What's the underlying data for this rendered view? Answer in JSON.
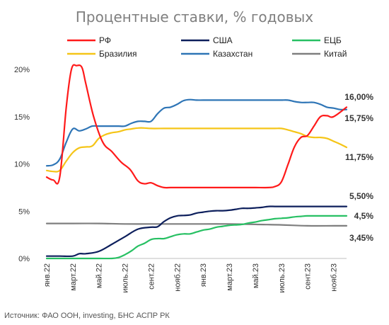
{
  "chart_data": {
    "type": "line",
    "title": "Процентные ставки, % годовых",
    "source": "Источник: ФАО ООН, investing, БНС АСПР РК",
    "ylim": [
      0,
      20
    ],
    "yticks": [
      "0%",
      "5%",
      "10%",
      "15%",
      "20%"
    ],
    "ytick_values": [
      0,
      5,
      10,
      15,
      20
    ],
    "xlim": [
      0,
      23
    ],
    "x_tick_labels": [
      "янв.22",
      "март.22",
      "май.22",
      "июль.22",
      "сент.22",
      "нояб.22",
      "янв.23",
      "март.23",
      "май.23",
      "июль.23",
      "сент.23",
      "нояб.23"
    ],
    "x_tick_positions": [
      0,
      2,
      4,
      6,
      8,
      10,
      12,
      14,
      16,
      18,
      20,
      22
    ],
    "grid": false,
    "legend_placement": "top",
    "series": [
      {
        "name": "РФ",
        "color": "#ff1a1a",
        "x": [
          0,
          0.5,
          1.0,
          1.5,
          1.9,
          2.3,
          2.7,
          3.0,
          3.6,
          4.3,
          5.0,
          5.7,
          6.4,
          7.0,
          7.5,
          8.0,
          8.5,
          9.0,
          9.5,
          10,
          11,
          12,
          13,
          14,
          15,
          16,
          17,
          17.5,
          18,
          18.5,
          19,
          19.5,
          20,
          20.5,
          21,
          21.5,
          22,
          23
        ],
        "values": [
          8.6,
          8.3,
          8.6,
          16.0,
          20.0,
          20.4,
          20.2,
          18.5,
          15.0,
          12.3,
          11.3,
          10.2,
          9.4,
          8.2,
          7.9,
          8.0,
          7.7,
          7.5,
          7.5,
          7.5,
          7.5,
          7.5,
          7.5,
          7.5,
          7.5,
          7.5,
          7.5,
          7.6,
          8.1,
          9.9,
          11.8,
          12.8,
          13.0,
          14.0,
          15.0,
          15.1,
          15.0,
          16.0
        ]
      },
      {
        "name": "США",
        "color": "#0d1f5c",
        "x": [
          0,
          1,
          2,
          2.5,
          3,
          4,
          5,
          6,
          7,
          8,
          8.5,
          9,
          9.5,
          10,
          10.5,
          11,
          11.5,
          12,
          12.5,
          13,
          13.5,
          14,
          14.5,
          15,
          15.5,
          16,
          16.5,
          17,
          17.5,
          18,
          19,
          20,
          21,
          22,
          23
        ],
        "values": [
          0.25,
          0.25,
          0.25,
          0.5,
          0.5,
          0.75,
          1.5,
          2.3,
          3.1,
          3.3,
          3.35,
          3.9,
          4.3,
          4.5,
          4.55,
          4.6,
          4.8,
          4.9,
          5.0,
          5.05,
          5.05,
          5.1,
          5.2,
          5.3,
          5.3,
          5.35,
          5.4,
          5.5,
          5.5,
          5.5,
          5.5,
          5.5,
          5.5,
          5.5,
          5.5
        ]
      },
      {
        "name": "ЕЦБ",
        "color": "#27c063",
        "x": [
          0,
          1,
          2,
          3,
          4,
          5,
          5.5,
          6,
          6.5,
          7,
          7.5,
          8,
          8.5,
          9,
          9.5,
          10,
          10.5,
          11,
          11.5,
          12,
          12.5,
          13,
          13.5,
          14,
          14.5,
          15,
          15.5,
          16,
          16.5,
          17,
          17.5,
          18,
          18.5,
          19,
          19.5,
          20,
          21,
          22,
          23
        ],
        "values": [
          0,
          0,
          0,
          0,
          0,
          0,
          0.1,
          0.4,
          0.8,
          1.3,
          1.6,
          2.0,
          2.1,
          2.1,
          2.3,
          2.5,
          2.6,
          2.6,
          2.8,
          3.0,
          3.1,
          3.3,
          3.4,
          3.5,
          3.55,
          3.6,
          3.75,
          3.85,
          4.0,
          4.1,
          4.2,
          4.25,
          4.3,
          4.4,
          4.45,
          4.5,
          4.5,
          4.5,
          4.5
        ]
      },
      {
        "name": "Бразилия",
        "color": "#f5c518",
        "x": [
          0,
          0.5,
          1,
          1.5,
          2,
          2.5,
          3,
          3.5,
          4,
          4.5,
          5,
          5.5,
          6,
          6.5,
          7,
          7.5,
          8,
          9,
          10,
          11,
          12,
          13,
          14,
          15,
          16,
          16.5,
          17,
          17.5,
          18,
          18.5,
          19,
          19.5,
          20,
          20.5,
          21,
          21.5,
          22,
          22.5,
          23
        ],
        "values": [
          9.3,
          9.2,
          9.3,
          10.3,
          11.2,
          11.7,
          11.8,
          11.9,
          12.7,
          13.1,
          13.3,
          13.4,
          13.6,
          13.7,
          13.8,
          13.8,
          13.75,
          13.75,
          13.75,
          13.75,
          13.75,
          13.75,
          13.75,
          13.75,
          13.75,
          13.75,
          13.75,
          13.75,
          13.75,
          13.6,
          13.4,
          13.2,
          12.9,
          12.8,
          12.8,
          12.7,
          12.4,
          12.1,
          11.75
        ]
      },
      {
        "name": "Казахстан",
        "color": "#2e75b6",
        "x": [
          0,
          0.5,
          1,
          1.5,
          2,
          2.5,
          3,
          3.5,
          4,
          4.5,
          5,
          5.5,
          6,
          6.5,
          7,
          7.5,
          8,
          8.5,
          9,
          9.5,
          10,
          10.5,
          11,
          11.5,
          12,
          13,
          14,
          15,
          16,
          17,
          17.5,
          18,
          18.5,
          19,
          19.5,
          20,
          20.5,
          21,
          21.5,
          22,
          22.5,
          23
        ],
        "values": [
          9.8,
          9.9,
          10.5,
          12.3,
          13.7,
          13.5,
          13.7,
          14.0,
          14.0,
          14.0,
          14.0,
          14.0,
          14.0,
          14.3,
          14.5,
          14.5,
          14.5,
          15.3,
          15.9,
          16.0,
          16.3,
          16.7,
          16.8,
          16.75,
          16.75,
          16.75,
          16.75,
          16.75,
          16.75,
          16.75,
          16.75,
          16.75,
          16.75,
          16.6,
          16.5,
          16.5,
          16.5,
          16.3,
          16.0,
          15.9,
          15.75,
          15.75
        ]
      },
      {
        "name": "Китай",
        "color": "#7f7f7f",
        "x": [
          0,
          2,
          4,
          6,
          8,
          10,
          12,
          14,
          16,
          18,
          20,
          22,
          23
        ],
        "values": [
          3.7,
          3.7,
          3.7,
          3.65,
          3.65,
          3.65,
          3.65,
          3.65,
          3.6,
          3.55,
          3.45,
          3.45,
          3.45
        ]
      }
    ],
    "end_labels": [
      {
        "text": "16,00%",
        "value": 16.0
      },
      {
        "text": "15,75%",
        "value": 15.75
      },
      {
        "text": "11,75%",
        "value": 11.75
      },
      {
        "text": "5,50%",
        "value": 5.5
      },
      {
        "text": "4,5%",
        "value": 4.5
      },
      {
        "text": "3,45%",
        "value": 3.45
      }
    ]
  }
}
